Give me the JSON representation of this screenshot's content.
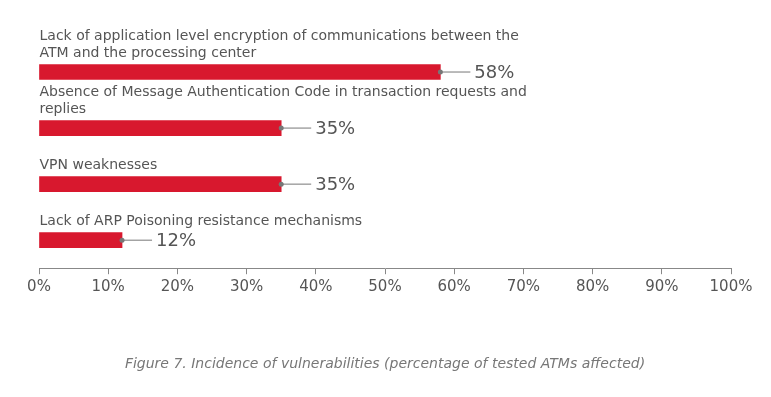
{
  "chart_data": {
    "type": "bar",
    "orientation": "horizontal",
    "title": "Figure 7. Incidence of vulnerabilities (percentage of tested ATMs affected)",
    "categories": [
      "Lack of application level encryption of communications between the ATM and the processing center",
      "Absence of Message Authentication Code in transaction requests and replies",
      "VPN weaknesses",
      "Lack of ARP Poisoning resistance mechanisms"
    ],
    "values": [
      58,
      35,
      35,
      12
    ],
    "value_labels": [
      "58%",
      "35%",
      "35%",
      "12%"
    ],
    "color": "#d8182e",
    "xlim": [
      0,
      100
    ],
    "xticks": [
      {
        "value": 0,
        "label": "0%"
      },
      {
        "value": 10,
        "label": "10%"
      },
      {
        "value": 20,
        "label": "20%"
      },
      {
        "value": 30,
        "label": "30%"
      },
      {
        "value": 40,
        "label": "40%"
      },
      {
        "value": 50,
        "label": "50%"
      },
      {
        "value": 60,
        "label": "60%"
      },
      {
        "value": 70,
        "label": "70%"
      },
      {
        "value": 80,
        "label": "80%"
      },
      {
        "value": 90,
        "label": "90%"
      },
      {
        "value": 100,
        "label": "100%"
      }
    ],
    "grid": false,
    "data_labels": true,
    "tick_labels": "x"
  }
}
